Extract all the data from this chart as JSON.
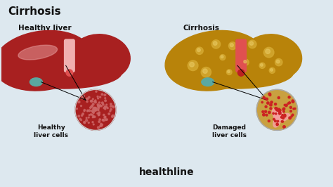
{
  "background_color": "#dde8ef",
  "title": "Cirrhosis",
  "title_fontsize": 11,
  "title_fontweight": "bold",
  "title_color": "#111111",
  "label_healthy_liver": "Healthy liver",
  "label_cirrhosis": "Cirrhosis",
  "label_healthy_cells": "Healthy\nliver cells",
  "label_damaged_cells": "Damaged\nliver cells",
  "brand": "healthline",
  "brand_fontsize": 10,
  "brand_color": "#111111",
  "healthy_liver_color": "#a82020",
  "healthy_liver_light": "#cc6666",
  "healthy_liver_highlight": "#e8a0a0",
  "cirrhosis_color": "#b8830a",
  "cirrhosis_dark": "#9a6e08",
  "cirrhosis_spot": "#d4a830",
  "bile_color": "#e05050",
  "bile_pink": "#f0b0b0",
  "teal_color": "#5aa8a0",
  "cell_red": "#cc2222",
  "cell_pink_light": "#f5a0a0",
  "cell_tan": "#c9a040"
}
